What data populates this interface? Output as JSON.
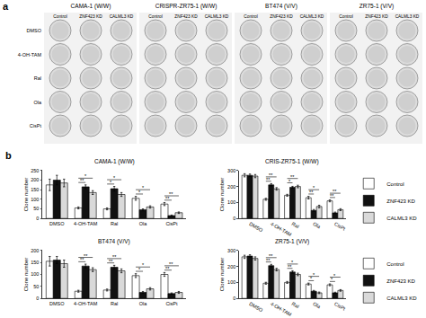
{
  "panel_a": {
    "label": "a",
    "groups": [
      {
        "title": "CAMA-1 (W/W)",
        "columns": [
          "Control",
          "ZNF423 KD",
          "CALML3 KD"
        ]
      },
      {
        "title": "CRISPR-ZR75-1 (W/W)",
        "columns": [
          "Control",
          "ZNF423 KD",
          "CALML3 KD"
        ]
      },
      {
        "title": "BT474 (V/V)",
        "columns": [
          "Control",
          "ZNF423 KD",
          "CALML3 KD"
        ]
      },
      {
        "title": "ZR75-1 (V/V)",
        "columns": [
          "Control",
          "ZNF423 KD",
          "CALML3 KD"
        ]
      }
    ],
    "rows": [
      "DMSO",
      "4-OH-TAM",
      "Ral",
      "Ola",
      "CisPt"
    ]
  },
  "panel_b_label": "b",
  "chart_data": [
    {
      "type": "bar",
      "title": "CAMA-1 (W/W)",
      "y_label": "Clone number",
      "categories": [
        "DMSO",
        "4-OH-TAM",
        "Ral",
        "Ola",
        "CisPt"
      ],
      "series": [
        {
          "name": "Control",
          "color": "#ffffff",
          "values": [
            175,
            55,
            50,
            105,
            75
          ],
          "errors": [
            30,
            5,
            5,
            10,
            8
          ]
        },
        {
          "name": "ZNF423 KD",
          "color": "#111111",
          "values": [
            200,
            165,
            155,
            45,
            15
          ],
          "errors": [
            25,
            10,
            12,
            5,
            3
          ]
        },
        {
          "name": "CALML3 KD",
          "color": "#d9d9d9",
          "values": [
            185,
            135,
            125,
            60,
            30
          ],
          "errors": [
            20,
            10,
            10,
            6,
            4
          ]
        }
      ],
      "significance": [
        [
          null,
          null
        ],
        [
          "**",
          "*"
        ],
        [
          "*",
          "*"
        ],
        [
          "*",
          "*"
        ],
        [
          "**",
          "**"
        ]
      ],
      "ylim": [
        0,
        250
      ],
      "yticks": [
        0,
        50,
        100,
        150,
        200,
        250
      ]
    },
    {
      "type": "bar",
      "title": "CRIS-ZR75-1 (W/W)",
      "y_label": "Clone number",
      "categories": [
        "DMSO",
        "4-OH-TAM",
        "Ral",
        "Ola",
        "CisPt"
      ],
      "series": [
        {
          "name": "Control",
          "color": "#ffffff",
          "values": [
            270,
            120,
            145,
            130,
            110
          ],
          "errors": [
            10,
            6,
            6,
            8,
            6
          ]
        },
        {
          "name": "ZNF423 KD",
          "color": "#111111",
          "values": [
            270,
            210,
            195,
            50,
            35
          ],
          "errors": [
            8,
            8,
            6,
            6,
            5
          ]
        },
        {
          "name": "CALML3 KD",
          "color": "#d9d9d9",
          "values": [
            265,
            185,
            200,
            75,
            55
          ],
          "errors": [
            10,
            8,
            8,
            8,
            6
          ]
        }
      ],
      "significance": [
        [
          null,
          null
        ],
        [
          "**",
          "**"
        ],
        [
          "*",
          "**"
        ],
        [
          "**",
          "*"
        ],
        [
          "**",
          "**"
        ]
      ],
      "ylim": [
        0,
        300
      ],
      "yticks": [
        0,
        100,
        200,
        300
      ],
      "legend": "right"
    },
    {
      "type": "bar",
      "title": "BT474 (V/V)",
      "y_label": "Clone number",
      "categories": [
        "DMSO",
        "4-OH-TAM",
        "Ral",
        "Ola",
        "CisPt"
      ],
      "series": [
        {
          "name": "Control",
          "color": "#ffffff",
          "values": [
            155,
            30,
            35,
            95,
            100
          ],
          "errors": [
            20,
            4,
            4,
            8,
            8
          ]
        },
        {
          "name": "ZNF423 KD",
          "color": "#111111",
          "values": [
            160,
            135,
            130,
            25,
            20
          ],
          "errors": [
            15,
            8,
            8,
            4,
            3
          ]
        },
        {
          "name": "CALML3 KD",
          "color": "#d9d9d9",
          "values": [
            145,
            120,
            115,
            40,
            25
          ],
          "errors": [
            15,
            8,
            8,
            5,
            4
          ]
        }
      ],
      "significance": [
        [
          null,
          null
        ],
        [
          "**",
          "**"
        ],
        [
          "**",
          "**"
        ],
        [
          "*",
          "*"
        ],
        [
          "**",
          "**"
        ]
      ],
      "ylim": [
        0,
        200
      ],
      "yticks": [
        0,
        50,
        100,
        150,
        200
      ]
    },
    {
      "type": "bar",
      "title": "ZR75-1 (V/V)",
      "y_label": "Clone number",
      "categories": [
        "DMSO",
        "4-OH-TAM",
        "Ral",
        "Ola",
        "CisPt"
      ],
      "series": [
        {
          "name": "Control",
          "color": "#ffffff",
          "values": [
            260,
            95,
            100,
            90,
            85
          ],
          "errors": [
            10,
            6,
            6,
            6,
            6
          ]
        },
        {
          "name": "ZNF423 KD",
          "color": "#111111",
          "values": [
            265,
            205,
            165,
            45,
            35
          ],
          "errors": [
            8,
            8,
            8,
            5,
            4
          ]
        },
        {
          "name": "CALML3 KD",
          "color": "#d9d9d9",
          "values": [
            250,
            180,
            150,
            35,
            50
          ],
          "errors": [
            10,
            8,
            8,
            5,
            5
          ]
        }
      ],
      "significance": [
        [
          null,
          null
        ],
        [
          "**",
          "**"
        ],
        [
          "**",
          "*"
        ],
        [
          "*",
          "*"
        ],
        [
          "*",
          "*"
        ]
      ],
      "ylim": [
        0,
        300
      ],
      "yticks": [
        0,
        100,
        200,
        300
      ],
      "legend": "right"
    }
  ]
}
